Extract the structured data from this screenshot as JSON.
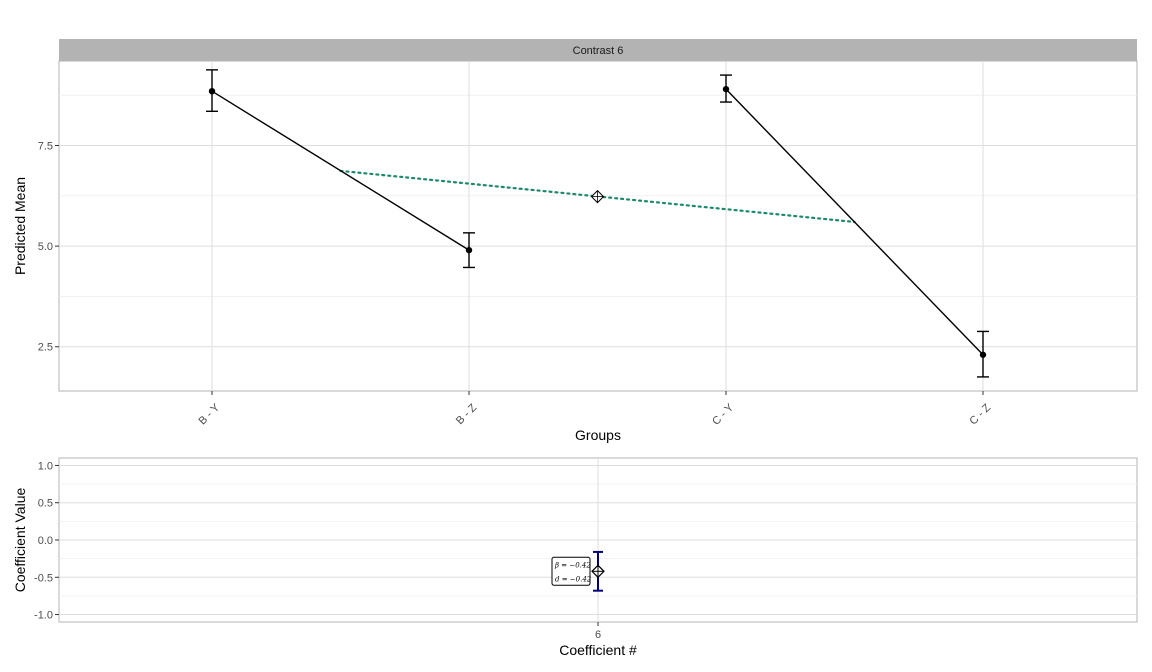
{
  "chart_data": [
    {
      "type": "line",
      "facet_title": "Contrast 6",
      "xlabel": "Groups",
      "ylabel": "Predicted Mean",
      "categories": [
        "B - Y",
        "B - Z",
        "C - Y",
        "C - Z"
      ],
      "yticks": [
        "2.5",
        "5.0",
        "7.5"
      ],
      "ylim": [
        1.4,
        9.6
      ],
      "grid": true,
      "series": [
        {
          "points": [
            {
              "category": "B - Y",
              "mean": 8.85,
              "lower": 8.35,
              "upper": 9.38
            },
            {
              "category": "B - Z",
              "mean": 4.9,
              "lower": 4.47,
              "upper": 5.33
            }
          ]
        },
        {
          "points": [
            {
              "category": "C - Y",
              "mean": 8.9,
              "lower": 8.58,
              "upper": 9.25
            },
            {
              "category": "C - Z",
              "mean": 2.3,
              "lower": 1.75,
              "upper": 2.88
            }
          ]
        }
      ],
      "contrast_line": {
        "color": "#1b8a6b",
        "start": {
          "x": 1.5,
          "y": 6.87
        },
        "end": {
          "x": 3.5,
          "y": 5.6
        },
        "center": {
          "x": 2.5,
          "y": 6.23
        }
      }
    },
    {
      "type": "scatter",
      "xlabel": "Coefficient #",
      "ylabel": "Coefficient Value",
      "categories": [
        "6"
      ],
      "yticks": [
        "-1.0",
        "-0.5",
        "0.0",
        "0.5",
        "1.0"
      ],
      "ylim": [
        -1.1,
        1.1
      ],
      "grid": true,
      "points": [
        {
          "category": "6",
          "value": -0.42,
          "lower": -0.68,
          "upper": -0.16,
          "color": "#00007f"
        }
      ],
      "annotation": {
        "beta": "β = −0.42",
        "d": "d = −0.42"
      }
    }
  ]
}
